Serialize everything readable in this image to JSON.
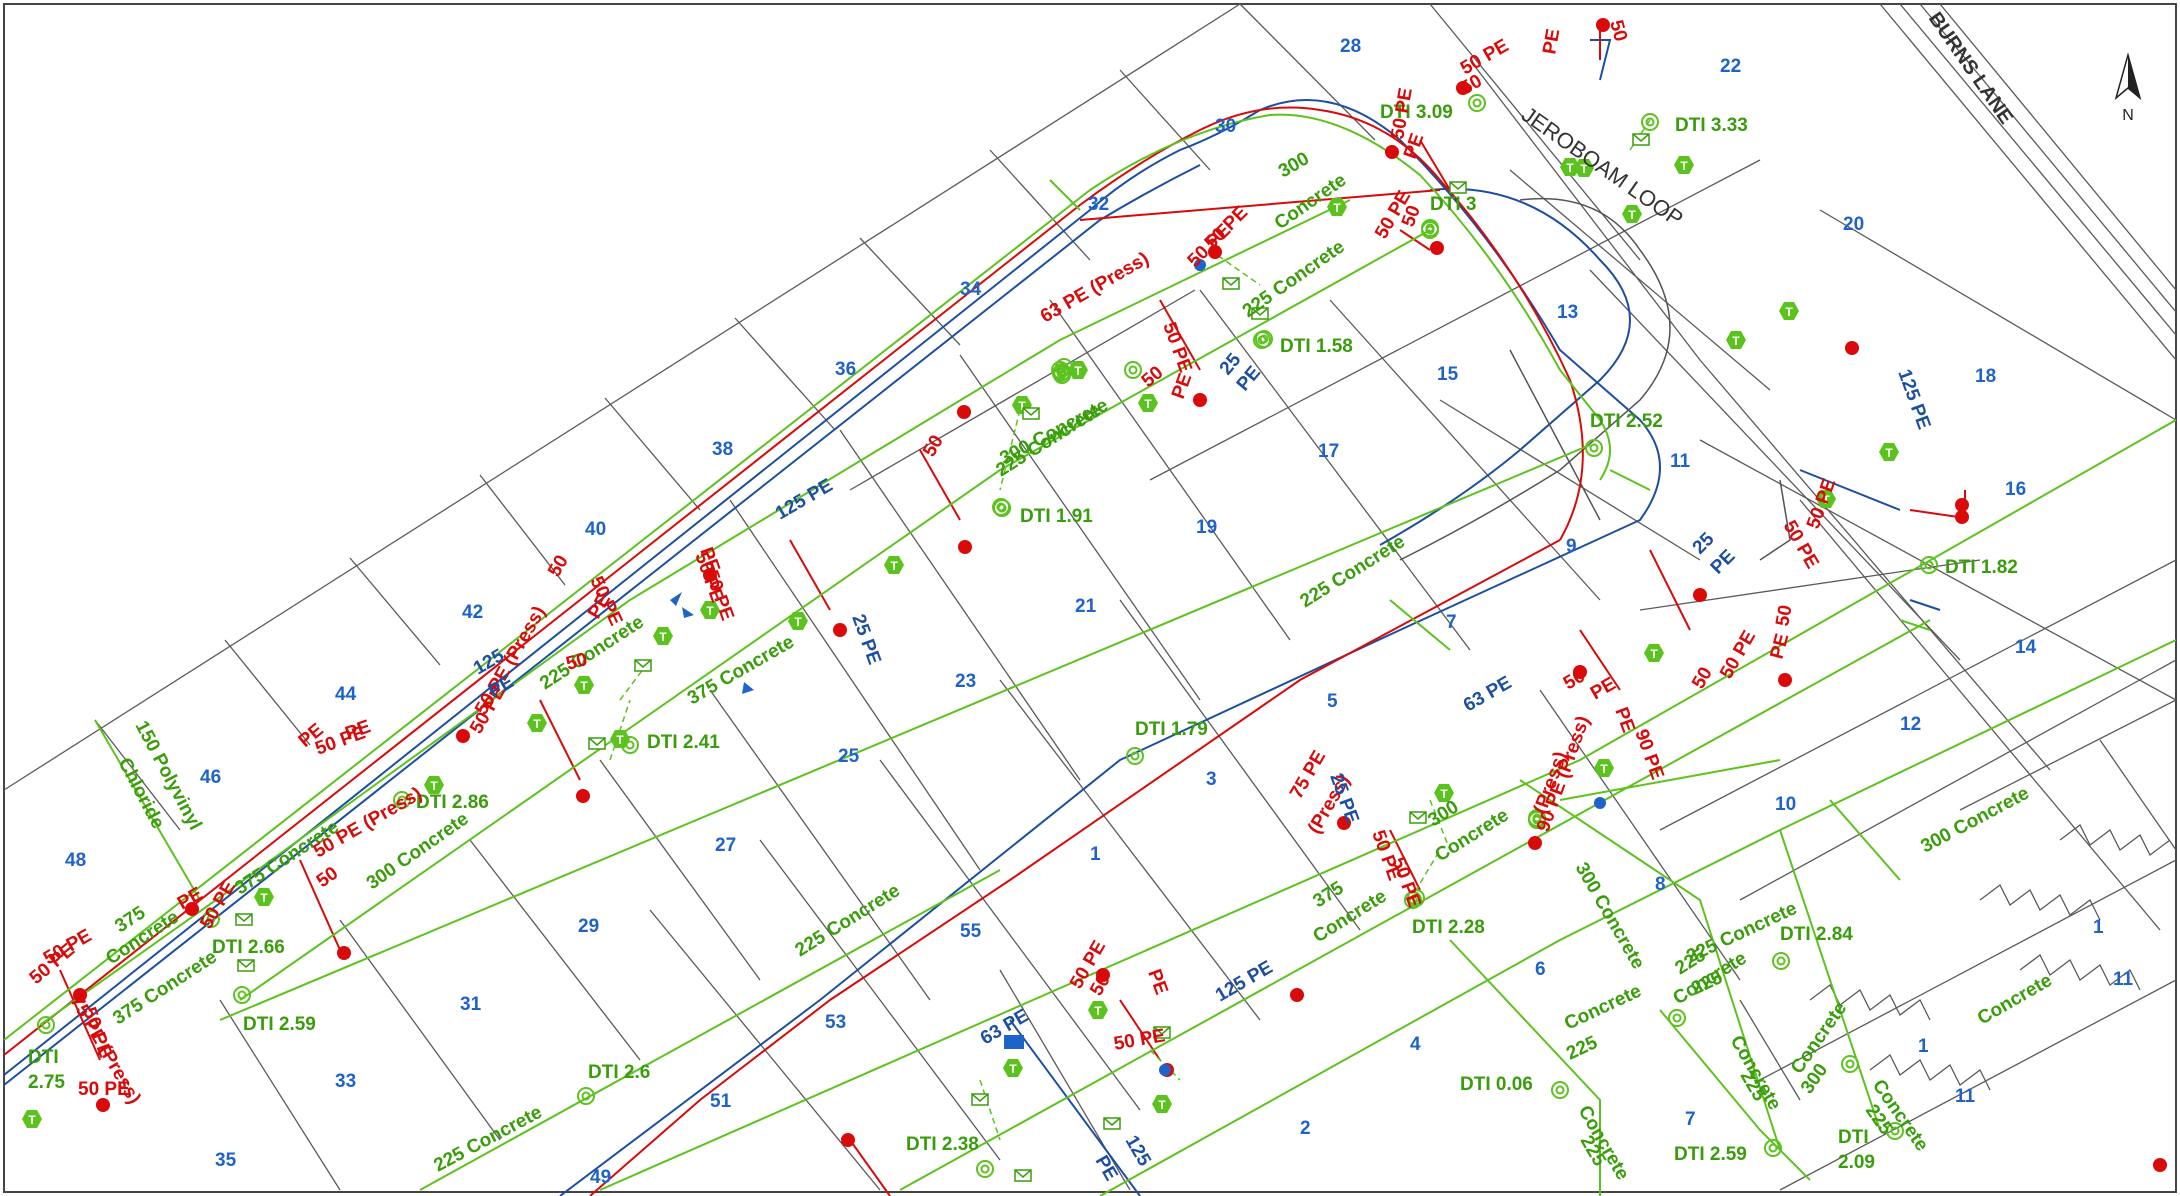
{
  "map": {
    "north_label": "N",
    "road_labels": {
      "jeroboam": "JEROBOAM LOOP",
      "burns": "BURNS LANE"
    },
    "lots": [
      "28",
      "30",
      "32",
      "34",
      "36",
      "38",
      "40",
      "42",
      "44",
      "46",
      "48",
      "22",
      "20",
      "18",
      "16",
      "14",
      "12",
      "10",
      "8",
      "6",
      "4",
      "2",
      "13",
      "15",
      "17",
      "19",
      "21",
      "23",
      "25",
      "27",
      "29",
      "31",
      "33",
      "35",
      "11",
      "9",
      "7",
      "5",
      "3",
      "1",
      "55",
      "53",
      "51",
      "49",
      "1",
      "11",
      "1",
      "11",
      "7"
    ],
    "green_labels": [
      "DTI 3.09",
      "DTI 3.33",
      "DTI 3",
      "DTI 1.58",
      "DTI 2.52",
      "DTI 1.91",
      "DTI 1.82",
      "DTI 2.41",
      "DTI 2.86",
      "DTI 1.79",
      "DTI 2.66",
      "DTI 2.59",
      "DTI 2.28",
      "DTI 2.84",
      "DTI 0.06",
      "DTI 2.59",
      "DTI 2.6",
      "DTI 2.38",
      "DTI",
      "2.75",
      "DTI",
      "2.09",
      "300",
      "Concrete",
      "225 Concrete",
      "225 Concrete",
      "225 Concrete",
      "375 Concrete",
      "300 Concrete",
      "225 Concrete",
      "150 Polyvinyl",
      "Chloride",
      "375",
      "Concrete",
      "375 Concrete",
      "375 Concrete",
      "300 Concrete",
      "225 Concrete",
      "300 Concrete",
      "225",
      "Concrete",
      "300",
      "Concrete",
      "375",
      "Concrete",
      "300 Concrete",
      "225 Concrete",
      "225",
      "Concrete",
      "225",
      "Concrete",
      "225",
      "Concrete",
      "225",
      "Concrete",
      "300",
      "Concrete",
      "225",
      "Concrete",
      "225 Concrete",
      "225 Concrete"
    ],
    "red_labels": [
      "50",
      "PE",
      "50 PE",
      "50",
      "PE",
      "50 PE",
      "63 PE (Press)",
      "50 PE",
      "50",
      "PE",
      "50 PE",
      "50 PE",
      "50",
      "PE",
      "50 PE",
      "50 PE",
      "50 PE",
      "50",
      "PE",
      "50 PE",
      "50",
      "PE",
      "50 PE (Press)",
      "50 PE",
      "50",
      "PE",
      "50 PE",
      "50 PE (Press)",
      "50",
      "PE",
      "50 PE",
      "50 PE",
      "50 PE",
      "75 PE (Press)",
      "50 PE",
      "50 PE",
      "50 PE",
      "50 PE",
      "50",
      "PE",
      "50",
      "PE",
      "50 PE",
      "50",
      "PE",
      "90 PE",
      "(Press)",
      "90 PE (Press)",
      "75 PE",
      "(Press)",
      "50 PE",
      "50 PE",
      "50 PE",
      "50",
      "PE",
      "50 PE"
    ],
    "blue_labels": [
      "125 PE",
      "125",
      "PE",
      "25",
      "PE",
      "25 PE",
      "125 PE",
      "25",
      "PE",
      "63 PE",
      "25 PE",
      "63 PE",
      "125 PE",
      "125",
      "PE"
    ],
    "colors": {
      "boundary": "#555555",
      "sewer": "#5cc21d",
      "sewer_text": "#3a9d0c",
      "gas": "#d80a0a",
      "water": "#1d4fa0",
      "lot_text": "#1f63c8"
    }
  }
}
